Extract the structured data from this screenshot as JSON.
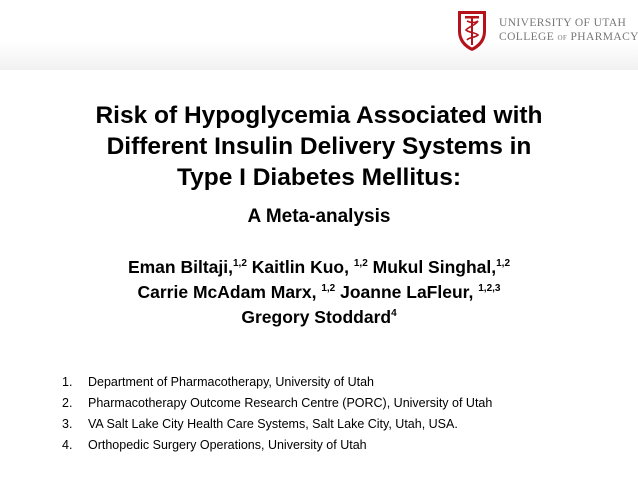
{
  "logo": {
    "line1": "UNIVERSITY OF UTAH",
    "line2_a": "COLLEGE",
    "line2_of": "OF",
    "line2_b": "PHARMACY"
  },
  "title": {
    "line1": "Risk of Hypoglycemia Associated with",
    "line2": "Different Insulin Delivery Systems in",
    "line3": "Type I Diabetes Mellitus:"
  },
  "subtitle": "A Meta-analysis",
  "authors": [
    {
      "name": "Eman Biltaji,",
      "sup": "1,2"
    },
    {
      "name": "Kaitlin Kuo,",
      "sup": "1,2"
    },
    {
      "name": "Mukul Singhal,",
      "sup": "1,2"
    },
    {
      "name": "Carrie McAdam Marx,",
      "sup": "1,2"
    },
    {
      "name": "Joanne LaFleur,",
      "sup": "1,2,3"
    },
    {
      "name": "Gregory Stoddard",
      "sup": "4"
    }
  ],
  "affiliations": [
    {
      "num": "1.",
      "text": "Department of Pharmacotherapy, University of Utah"
    },
    {
      "num": "2.",
      "text": "Pharmacotherapy Outcome Research Centre (PORC), University of Utah"
    },
    {
      "num": "3.",
      "text": "VA Salt Lake City Health Care Systems, Salt Lake City, Utah, USA."
    },
    {
      "num": "4.",
      "text": "Orthopedic Surgery Operations, University of Utah"
    }
  ],
  "colors": {
    "brand_red": "#b5121b",
    "logo_gray": "#777777"
  },
  "icons": {
    "crest": "university-crest-icon"
  }
}
